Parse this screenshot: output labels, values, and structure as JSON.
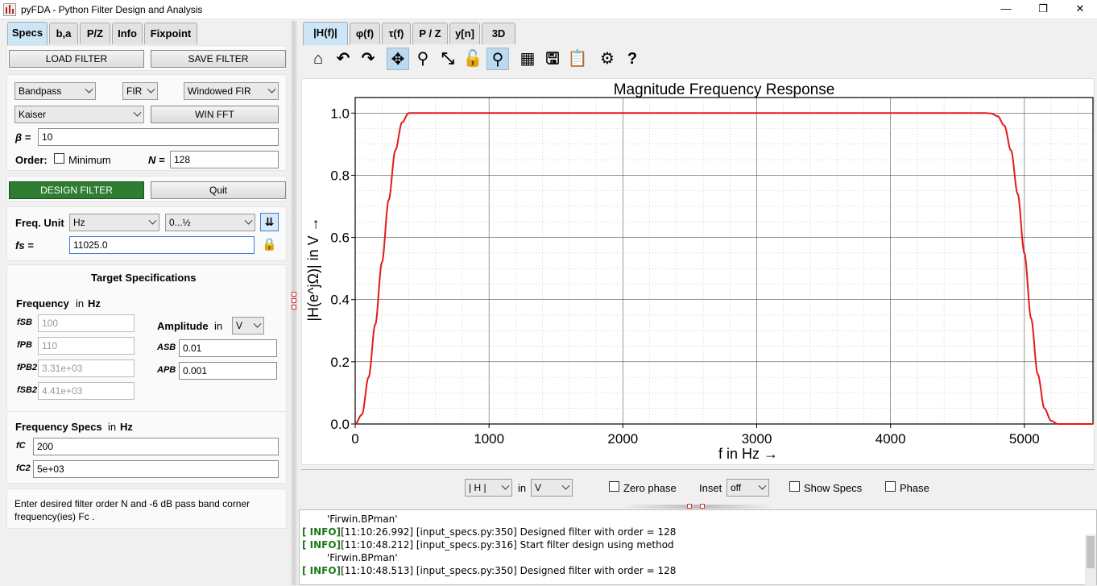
{
  "window": {
    "title": "pyFDA - Python Filter Design and Analysis",
    "minimize": "—",
    "restore": "❐",
    "close": "✕"
  },
  "left_tabs": [
    "Specs",
    "b,a",
    "P/Z",
    "Info",
    "Fixpoint"
  ],
  "file_buttons": {
    "load": "LOAD FILTER",
    "save": "SAVE FILTER"
  },
  "filter": {
    "response_type": "Bandpass",
    "filter_type": "FIR",
    "design_method": "Windowed FIR",
    "window": "Kaiser",
    "win_fft": "WIN FFT",
    "beta_label": "β =",
    "beta_value": "10",
    "order_label": "Order:",
    "minimum_label": "Minimum",
    "n_label": "N =",
    "n_value": "128"
  },
  "actions": {
    "design": "DESIGN FILTER",
    "quit": "Quit"
  },
  "freq_unit": {
    "label": "Freq. Unit",
    "unit": "Hz",
    "range": "0...½",
    "fs_label": "fs =",
    "fs_value": "11025.0"
  },
  "target_specs": {
    "title": "Target Specifications",
    "freq_label": "Frequency",
    "in_label": "in",
    "freq_unit": "Hz",
    "fields": [
      {
        "label": "fSB",
        "value": "100"
      },
      {
        "label": "fPB",
        "value": "110"
      },
      {
        "label": "fPB2",
        "value": "3.31e+03"
      },
      {
        "label": "fSB2",
        "value": "4.41e+03"
      }
    ],
    "amp_label": "Amplitude",
    "amp_unit": "V",
    "amp_fields": [
      {
        "label": "ASB",
        "value": "0.01"
      },
      {
        "label": "APB",
        "value": "0.001"
      }
    ]
  },
  "freq_specs": {
    "title": "Frequency Specs",
    "in_label": "in",
    "unit": "Hz",
    "fields": [
      {
        "label": "fC",
        "value": "200"
      },
      {
        "label": "fC2",
        "value": "5e+03"
      }
    ]
  },
  "help_text": "Enter desired filter order N and -6 dB pass band corner frequency(ies) Fc .",
  "plot_tabs": [
    "|H(f)|",
    "φ(f)",
    "τ(f)",
    "P / Z",
    "y[n]",
    "3D"
  ],
  "toolbar_icons": [
    "home-icon",
    "undo-icon",
    "redo-icon",
    "pan-icon",
    "zoom-icon",
    "fit-icon",
    "lock-icon",
    "marker-icon",
    "grid-icon",
    "save-icon",
    "clipboard-icon",
    "settings-icon",
    "help-icon"
  ],
  "chart_data": {
    "type": "line",
    "title": "Magnitude Frequency Response",
    "xlabel": "f in Hz →",
    "ylabel": "|H(e^jΩ)| in V →",
    "xlim": [
      0,
      5512.5
    ],
    "ylim": [
      0,
      1.05
    ],
    "xticks": [
      0,
      1000,
      2000,
      3000,
      4000,
      5000
    ],
    "yticks": [
      0.0,
      0.2,
      0.4,
      0.6,
      0.8,
      1.0
    ],
    "grid": true,
    "series": [
      {
        "color": "#e31a1c",
        "x": [
          0,
          50,
          100,
          150,
          200,
          250,
          300,
          350,
          400,
          450,
          4700,
          4750,
          4800,
          4850,
          4900,
          4950,
          5000,
          5050,
          5100,
          5150,
          5200,
          5250,
          5300,
          5512.5
        ],
        "y": [
          0.0,
          0.03,
          0.15,
          0.32,
          0.52,
          0.72,
          0.88,
          0.97,
          1.0,
          1.0,
          1.0,
          0.999,
          0.99,
          0.96,
          0.88,
          0.74,
          0.55,
          0.34,
          0.16,
          0.05,
          0.01,
          0.0,
          0.0,
          0.0
        ]
      }
    ]
  },
  "plot_controls": {
    "mag_select": "| H |",
    "in_label": "in",
    "unit_select": "V",
    "zero_phase": "Zero phase",
    "inset_label": "Inset",
    "inset_value": "off",
    "show_specs": "Show Specs",
    "phase": "Phase"
  },
  "log": [
    {
      "level": "",
      "text": "'Firwin.BPman'"
    },
    {
      "level": "[ INFO]",
      "text": "[11:10:26.992] [input_specs.py:350] Designed filter with order = 128"
    },
    {
      "level": "[ INFO]",
      "text": "[11:10:48.212] [input_specs.py:316] Start filter design using method"
    },
    {
      "level": "",
      "text": "'Firwin.BPman'"
    },
    {
      "level": "[ INFO]",
      "text": "[11:10:48.513] [input_specs.py:350] Designed filter with order = 128"
    }
  ]
}
